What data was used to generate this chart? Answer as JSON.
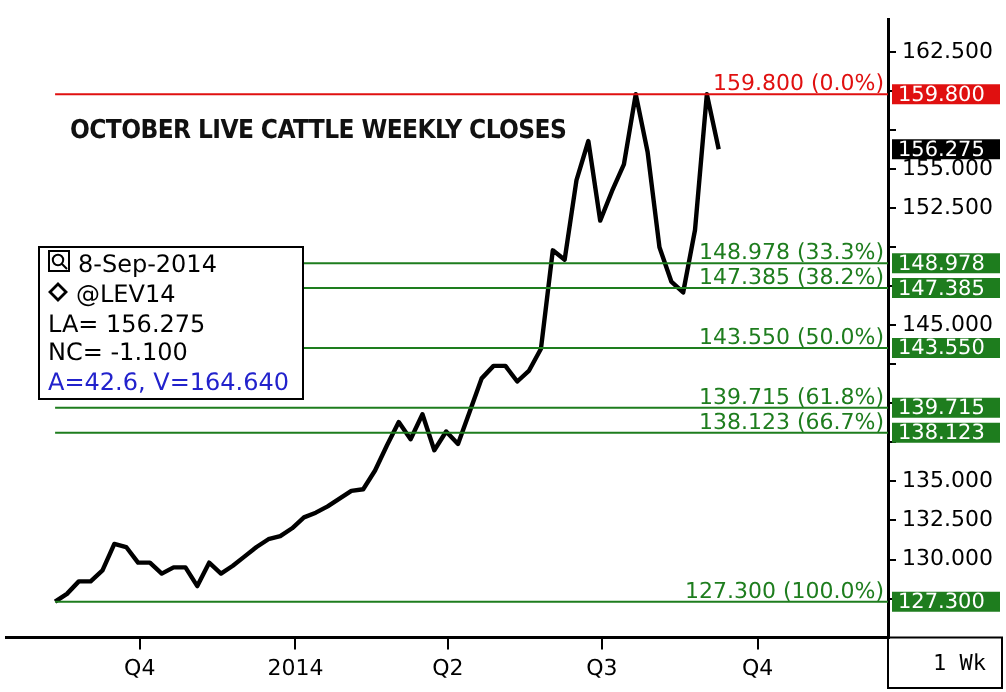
{
  "chart_data": {
    "type": "line",
    "title": "OCTOBER LIVE CATTLE WEEKLY CLOSES",
    "x": [
      "2013-08-12",
      "2013-08-19",
      "2013-08-26",
      "2013-09-02",
      "2013-09-09",
      "2013-09-16",
      "2013-09-23",
      "2013-09-30",
      "2013-10-07",
      "2013-10-14",
      "2013-10-21",
      "2013-10-28",
      "2013-11-04",
      "2013-11-11",
      "2013-11-18",
      "2013-11-25",
      "2013-12-02",
      "2013-12-09",
      "2013-12-16",
      "2013-12-23",
      "2013-12-30",
      "2014-01-06",
      "2014-01-13",
      "2014-01-20",
      "2014-01-27",
      "2014-02-03",
      "2014-02-10",
      "2014-02-17",
      "2014-02-24",
      "2014-03-03",
      "2014-03-10",
      "2014-03-17",
      "2014-03-24",
      "2014-03-31",
      "2014-04-07",
      "2014-04-14",
      "2014-04-21",
      "2014-04-28",
      "2014-05-05",
      "2014-05-12",
      "2014-05-19",
      "2014-05-26",
      "2014-06-02",
      "2014-06-09",
      "2014-06-16",
      "2014-06-23",
      "2014-06-30",
      "2014-07-07",
      "2014-07-14",
      "2014-07-21",
      "2014-07-28",
      "2014-08-04",
      "2014-08-11",
      "2014-08-18",
      "2014-08-25",
      "2014-09-01",
      "2014-09-08"
    ],
    "series": [
      {
        "color": "#000000",
        "values": [
          127.3,
          127.8,
          128.6,
          128.6,
          129.3,
          131.0,
          130.8,
          129.8,
          129.8,
          129.1,
          129.5,
          129.5,
          128.3,
          129.8,
          129.1,
          129.6,
          130.2,
          130.8,
          131.3,
          131.5,
          132.0,
          132.7,
          133.0,
          133.4,
          133.9,
          134.4,
          134.5,
          135.7,
          137.3,
          138.8,
          137.7,
          139.3,
          137.0,
          138.2,
          137.4,
          139.5,
          141.6,
          142.4,
          142.4,
          141.4,
          142.1,
          143.5,
          149.8,
          149.2,
          154.3,
          156.8,
          151.7,
          153.6,
          155.3,
          159.8,
          156.1,
          150.0,
          147.8,
          147.1,
          151.1,
          159.8,
          156.275
        ]
      }
    ],
    "xlim": [
      "2013-07-14",
      "2014-12-17"
    ],
    "xticks": [
      {
        "value": "2013-10-01",
        "label": "Q4"
      },
      {
        "value": "2014-01-01",
        "label": "2014"
      },
      {
        "value": "2014-04-01",
        "label": "Q2"
      },
      {
        "value": "2014-07-01",
        "label": "Q3"
      },
      {
        "value": "2014-10-01",
        "label": "Q4"
      }
    ],
    "ylim": [
      125,
      164.6
    ],
    "yticks": [
      {
        "value": 127.5,
        "label": null
      },
      "130.000",
      "132.500",
      "135.000",
      {
        "value": 137.5,
        "label": null
      },
      {
        "value": 140,
        "label": null
      },
      {
        "value": 142.5,
        "label": null
      },
      {
        "value": 145,
        "label": "145.000"
      },
      {
        "value": 147.5,
        "label": null
      },
      {
        "value": 150,
        "label": null
      },
      {
        "value": 152.5,
        "label": "152.500"
      },
      {
        "value": 155,
        "label": "155.000"
      },
      {
        "value": 157.5,
        "label": null
      },
      {
        "value": 160,
        "label": null
      },
      {
        "value": 162.5,
        "label": "162.500"
      }
    ],
    "ref_lines": [
      {
        "axis": "y",
        "value": 159.8,
        "label": "159.800 (0.0%)",
        "color": "#e01010"
      },
      {
        "axis": "y",
        "value": 148.978,
        "label": "148.978 (33.3%)",
        "color": "#1e7d1e"
      },
      {
        "axis": "y",
        "value": 147.385,
        "label": "147.385 (38.2%)",
        "color": "#1e7d1e"
      },
      {
        "axis": "y",
        "value": 143.55,
        "label": "143.550 (50.0%)",
        "color": "#1e7d1e"
      },
      {
        "axis": "y",
        "value": 139.715,
        "label": "139.715 (61.8%)",
        "color": "#1e7d1e"
      },
      {
        "axis": "y",
        "value": 138.123,
        "label": "138.123 (66.7%)",
        "color": "#1e7d1e"
      },
      {
        "axis": "y",
        "value": 127.3,
        "label": "127.300 (100.0%)",
        "color": "#1e7d1e"
      }
    ],
    "annotations": [
      "8-Sep-2014",
      "@LEV14",
      "LA= 156.275",
      "NC= -1.100",
      "A=42.6, V=164.640",
      "1 Wk",
      "159.800",
      "148.978",
      "147.385",
      "143.550",
      "139.715",
      "138.123",
      "127.300",
      "156.275"
    ],
    "grid": false,
    "legend": false,
    "marker": "none",
    "line_style": "solid"
  }
}
